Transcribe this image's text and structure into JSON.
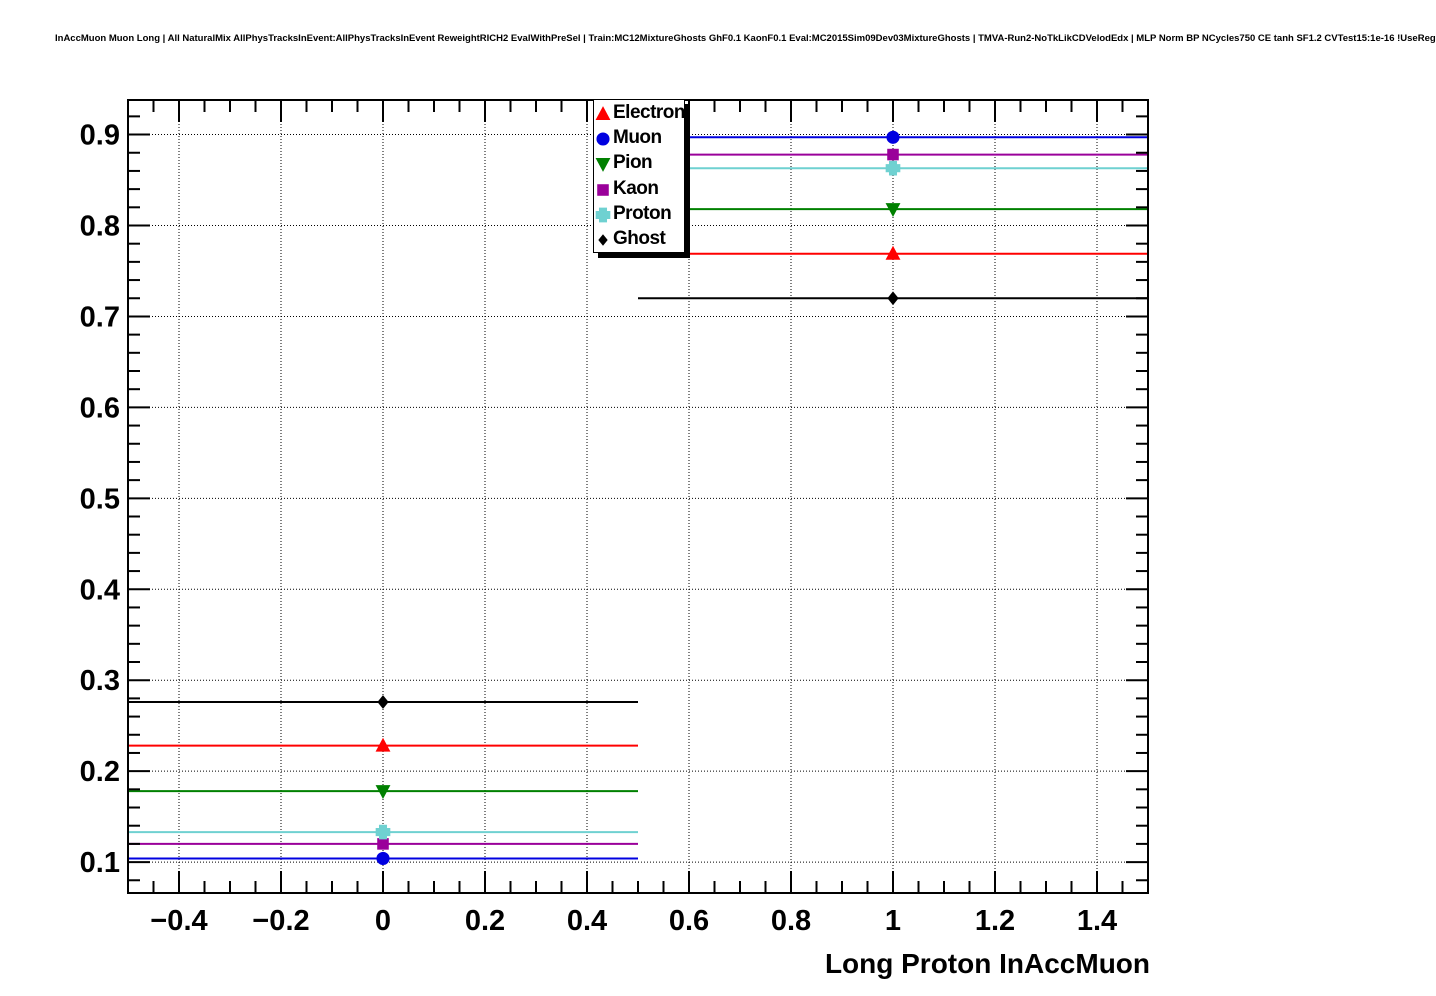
{
  "title": "InAccMuon Muon Long | All NaturalMix AllPhysTracksInEvent:AllPhysTracksInEvent ReweightRICH2 EvalWithPreSel | Train:MC12MixtureGhosts GhF0.1 KaonF0.1 Eval:MC2015Sim09Dev03MixtureGhosts | TMVA-Run2-NoTkLikCDVelodEdx | MLP Norm BP NCycles750 CE tanh SF1.2 CVTest15:1e-16 !UseReg",
  "chart_data": {
    "type": "scatter",
    "title": "InAccMuon Muon Long | All NaturalMix AllPhysTracksInEvent:AllPhysTracksInEvent ReweightRICH2 EvalWithPreSel | Train:MC12MixtureGhosts GhF0.1 KaonF0.1 Eval:MC2015Sim09Dev03MixtureGhosts | TMVA-Run2-NoTkLikCDVelodEdx | MLP Norm BP NCycles750 CE tanh SF1.2 CVTest15:1e-16 !UseReg",
    "xlabel": "Long Proton InAccMuon",
    "ylabel": "",
    "xlim": [
      -0.5,
      1.5
    ],
    "ylim": [
      0.066,
      0.938
    ],
    "grid": "dotted at major ticks, both axes",
    "legend_position": "top, left-of-center, inside frame",
    "x": [
      0,
      1
    ],
    "bin_edges": [
      [
        -0.5,
        0.5
      ],
      [
        0.5,
        1.5
      ]
    ],
    "x_ticks": [
      {
        "v": -0.4,
        "label": "−0.4"
      },
      {
        "v": -0.2,
        "label": "−0.2"
      },
      {
        "v": 0,
        "label": "0"
      },
      {
        "v": 0.2,
        "label": "0.2"
      },
      {
        "v": 0.4,
        "label": "0.4"
      },
      {
        "v": 0.6,
        "label": "0.6"
      },
      {
        "v": 0.8,
        "label": "0.8"
      },
      {
        "v": 1,
        "label": "1"
      },
      {
        "v": 1.2,
        "label": "1.2"
      },
      {
        "v": 1.4,
        "label": "1.4"
      }
    ],
    "x_minor_step": 0.05,
    "y_ticks": [
      {
        "v": 0.1,
        "label": "0.1"
      },
      {
        "v": 0.2,
        "label": "0.2"
      },
      {
        "v": 0.3,
        "label": "0.3"
      },
      {
        "v": 0.4,
        "label": "0.4"
      },
      {
        "v": 0.5,
        "label": "0.5"
      },
      {
        "v": 0.6,
        "label": "0.6"
      },
      {
        "v": 0.7,
        "label": "0.7"
      },
      {
        "v": 0.8,
        "label": "0.8"
      },
      {
        "v": 0.9,
        "label": "0.9"
      }
    ],
    "y_minor_step": 0.02,
    "series": [
      {
        "name": "Electron",
        "color": "#ff0000",
        "marker": "triangle-up",
        "values": [
          0.228,
          0.769
        ]
      },
      {
        "name": "Muon",
        "color": "#0000e0",
        "marker": "circle",
        "values": [
          0.104,
          0.897
        ]
      },
      {
        "name": "Pion",
        "color": "#008000",
        "marker": "triangle-down",
        "values": [
          0.178,
          0.818
        ]
      },
      {
        "name": "Kaon",
        "color": "#9a009a",
        "marker": "square",
        "values": [
          0.12,
          0.878
        ]
      },
      {
        "name": "Proton",
        "color": "#6fd1d1",
        "marker": "cross",
        "values": [
          0.133,
          0.863
        ]
      },
      {
        "name": "Ghost",
        "color": "#000000",
        "marker": "diamond",
        "values": [
          0.276,
          0.72
        ]
      }
    ]
  }
}
